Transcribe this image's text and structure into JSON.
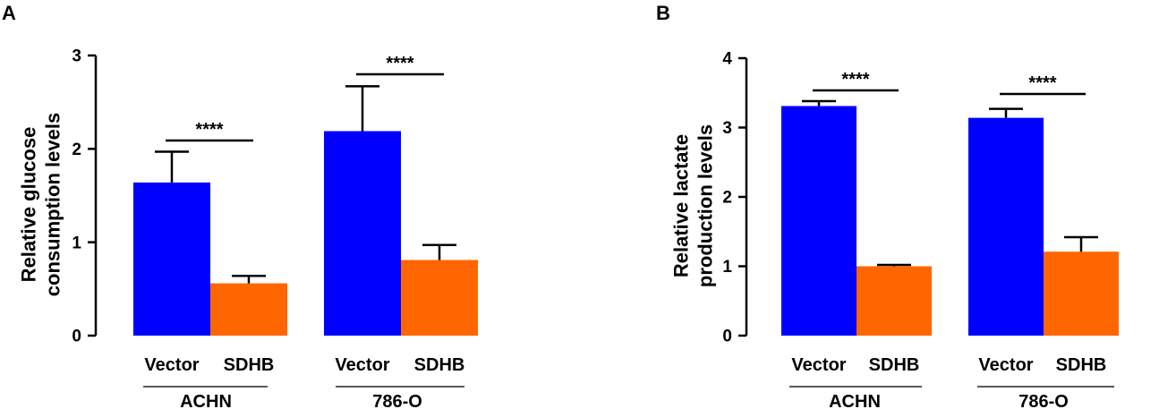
{
  "chart_data": [
    {
      "type": "bar",
      "panel_label": "A",
      "ylabel_lines": [
        "Relative glucose",
        "consumption levels"
      ],
      "ylim": [
        0,
        3
      ],
      "yticks": [
        "0",
        "1",
        "2",
        "3"
      ],
      "groups": [
        {
          "name": "ACHN",
          "bars": [
            {
              "label": "Vector",
              "value": 1.64,
              "error": 0.33,
              "color": "#0000ff"
            },
            {
              "label": "SDHB",
              "value": 0.56,
              "error": 0.08,
              "color": "#ff6600"
            }
          ],
          "significance": "****"
        },
        {
          "name": "786-O",
          "bars": [
            {
              "label": "Vector",
              "value": 2.19,
              "error": 0.48,
              "color": "#0000ff"
            },
            {
              "label": "SDHB",
              "value": 0.81,
              "error": 0.16,
              "color": "#ff6600"
            }
          ],
          "significance": "****"
        }
      ]
    },
    {
      "type": "bar",
      "panel_label": "B",
      "ylabel_lines": [
        "Relative lactate",
        "production levels"
      ],
      "ylim": [
        0,
        4
      ],
      "yticks": [
        "0",
        "1",
        "2",
        "3",
        "4"
      ],
      "groups": [
        {
          "name": "ACHN",
          "bars": [
            {
              "label": "Vector",
              "value": 3.31,
              "error": 0.07,
              "color": "#0000ff"
            },
            {
              "label": "SDHB",
              "value": 1.0,
              "error": 0.02,
              "color": "#ff6600"
            }
          ],
          "significance": "****"
        },
        {
          "name": "786-O",
          "bars": [
            {
              "label": "Vector",
              "value": 3.14,
              "error": 0.13,
              "color": "#0000ff"
            },
            {
              "label": "SDHB",
              "value": 1.21,
              "error": 0.21,
              "color": "#ff6600"
            }
          ],
          "significance": "****"
        }
      ]
    }
  ]
}
